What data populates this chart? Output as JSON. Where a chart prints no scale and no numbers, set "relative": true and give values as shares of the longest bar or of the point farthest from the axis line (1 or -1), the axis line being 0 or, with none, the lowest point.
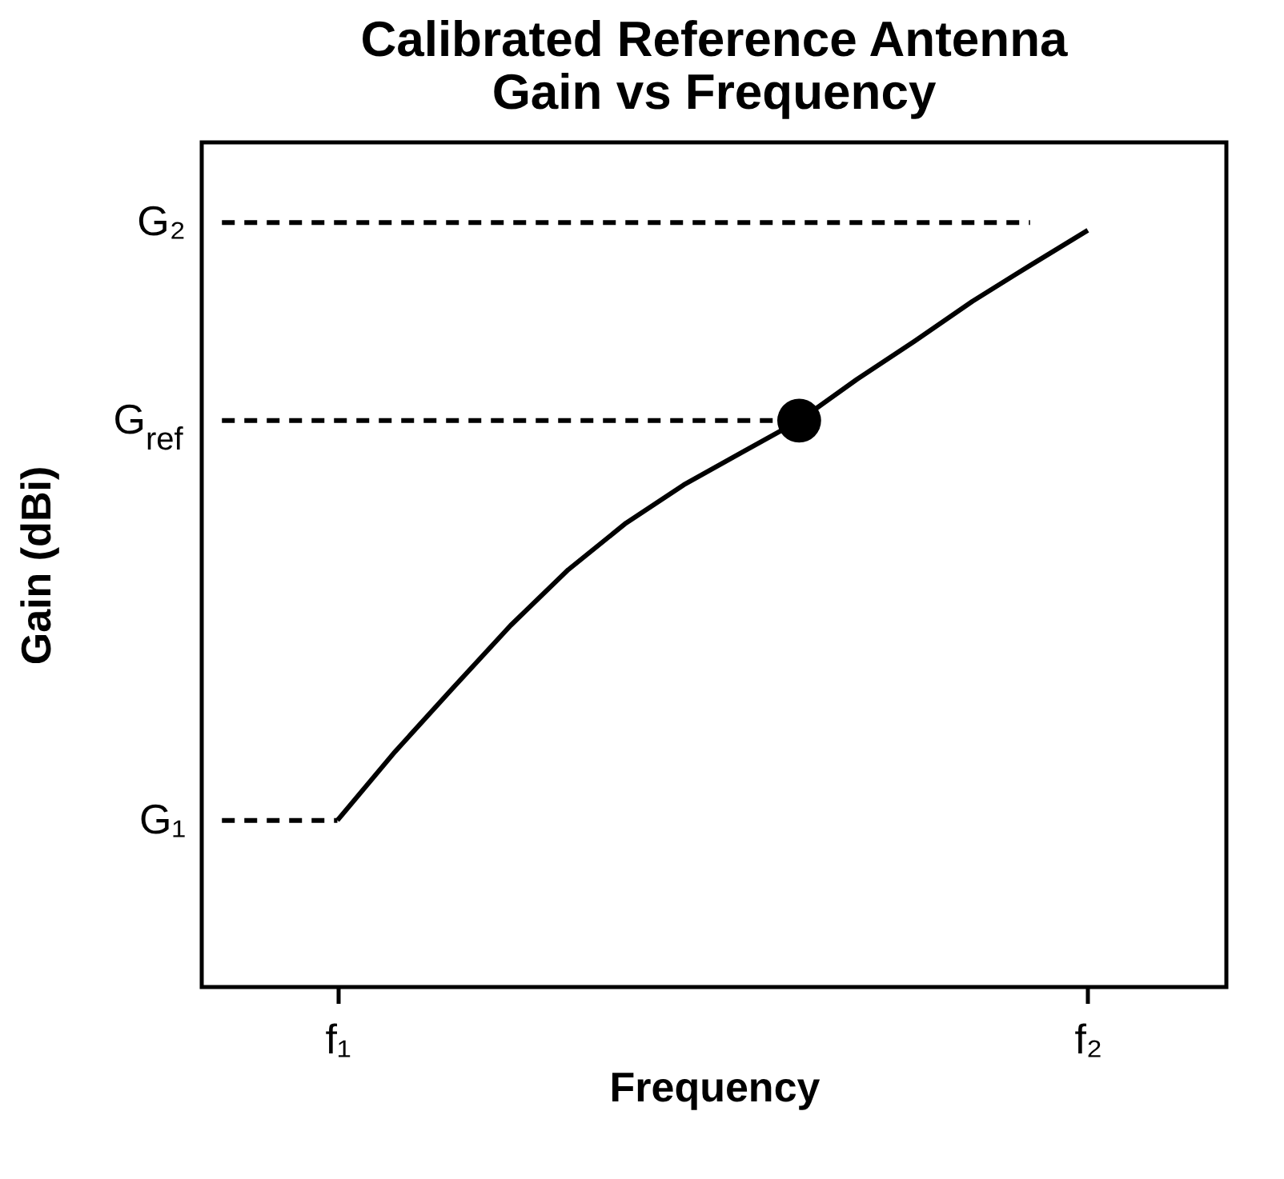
{
  "chart_data": {
    "type": "line",
    "title": "Calibrated Reference Antenna\nGain vs Frequency",
    "xlabel": "Frequency",
    "ylabel": "Gain (dBi)",
    "relative": true,
    "categories": [
      null,
      null,
      "f₁",
      null,
      null,
      null,
      null,
      null,
      null,
      null,
      null,
      null,
      null,
      null,
      null,
      "f₂"
    ],
    "series": [
      {
        "line_style": "solid",
        "color": "#000000",
        "values": [
          null,
          null,
          0.218,
          0.308,
          0.391,
          0.473,
          0.546,
          0.607,
          0.657,
          0.699,
          0.741,
          0.795,
          0.845,
          0.897,
          0.944,
          0.99
        ]
      },
      {
        "type": "line",
        "name": "G$_{ref}$",
        "line_style": "dashed",
        "color": "#000000",
        "values": [
          0.741,
          0.741,
          0.741,
          0.741,
          0.741,
          0.741,
          0.741,
          0.741,
          0.741,
          0.741,
          0.741,
          null,
          null,
          null,
          null,
          null
        ]
      },
      {
        "type": "line",
        "name": "G₂",
        "line_style": "dashed",
        "color": "#000000",
        "values": [
          1,
          1,
          1,
          1,
          1,
          1,
          1,
          1,
          1,
          1,
          1,
          1,
          1,
          1,
          1,
          null
        ]
      },
      {
        "type": "line",
        "name": "G₁",
        "line_style": "dashed",
        "color": "#000000",
        "values": [
          0.218,
          0.218,
          0.218,
          null,
          null,
          null,
          null,
          null,
          null,
          null,
          null,
          null,
          null,
          null,
          null,
          null
        ]
      },
      {
        "type": "scatter",
        "marker": "circle",
        "color": "#000000",
        "values": [
          null,
          null,
          null,
          null,
          null,
          null,
          null,
          null,
          null,
          null,
          0.741,
          null,
          null,
          null,
          null,
          null
        ]
      }
    ]
  }
}
